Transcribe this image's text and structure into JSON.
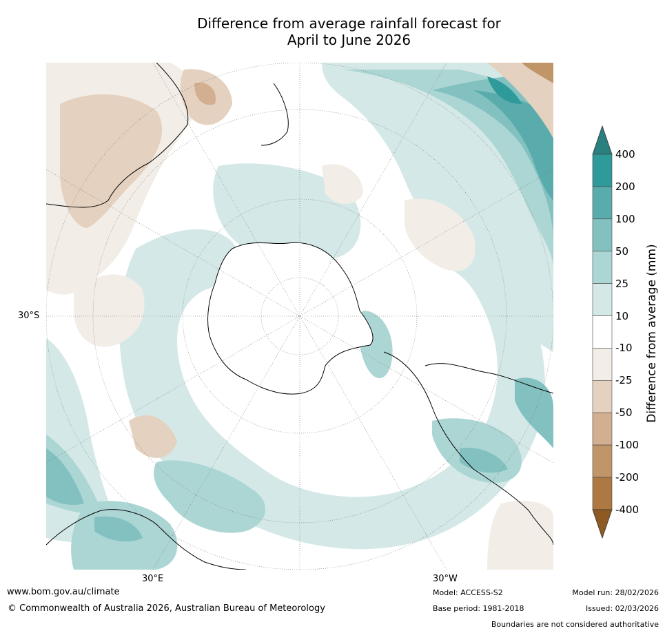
{
  "title_line1": "Difference from average rainfall forecast for",
  "title_line2": "April to June 2026",
  "map": {
    "projection": "south polar stereographic",
    "lat_label_left": "30°S",
    "lon_label_bottom_left": "30°E",
    "lon_label_bottom_right": "30°W"
  },
  "colorbar": {
    "title": "Difference from average (mm)",
    "tick_labels": [
      "400",
      "200",
      "100",
      "50",
      "25",
      "10",
      "-10",
      "-25",
      "-50",
      "-100",
      "-200",
      "-400"
    ],
    "colors": {
      "over": "#2a7f7f",
      "200-400": "#2e9a9a",
      "100-200": "#5aabab",
      "50-100": "#83c1c1",
      "25-50": "#acd6d4",
      "10-25": "#d4e9e7",
      "-10-10": "#ffffff",
      "-25--10": "#f2ede6",
      "-50--25": "#e4d1bf",
      "-100--50": "#d2af90",
      "-200--100": "#c09568",
      "-400--200": "#ad7842",
      "under": "#8e5a24"
    }
  },
  "footer": {
    "website": "www.bom.gov.au/climate",
    "copyright": "© Commonwealth of Australia 2026, Australian Bureau of Meteorology",
    "model": "Model: ACCESS-S2",
    "base_period": "Base period: 1981-2018",
    "model_run": "Model run: 28/02/2026",
    "issued": "Issued: 02/03/2026",
    "disclaimer": "Boundaries are not considered authoritative"
  }
}
